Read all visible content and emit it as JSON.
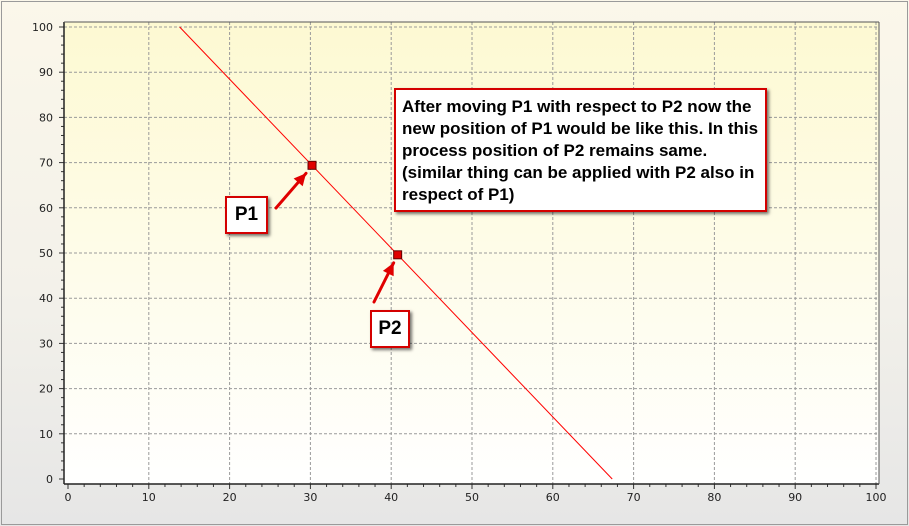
{
  "chart_data": {
    "type": "line",
    "xlim": [
      0,
      100
    ],
    "ylim": [
      0,
      100
    ],
    "x_ticks": [
      0,
      10,
      20,
      30,
      40,
      50,
      60,
      70,
      80,
      90,
      100
    ],
    "y_ticks": [
      0,
      10,
      20,
      30,
      40,
      50,
      60,
      70,
      80,
      90,
      100
    ],
    "grid": true,
    "line": {
      "color": "#ff0000",
      "through": [
        [
          30.2,
          69.4
        ],
        [
          40.8,
          49.6
        ]
      ]
    },
    "points": [
      {
        "label": "P1",
        "x": 30.2,
        "y": 69.4
      },
      {
        "label": "P2",
        "x": 40.8,
        "y": 49.6
      }
    ],
    "annotation": "After moving P1 with respect to P2 now the new position of P1 would be like this. In this process position of P2 remains same.(similar thing can be applied with P2 also in respect of P1)",
    "colors": {
      "line": "#ff0000",
      "point": "#e00000",
      "callout_border": "#d40000",
      "arrow": "#e00000",
      "grid": "#9a9a9a"
    }
  }
}
